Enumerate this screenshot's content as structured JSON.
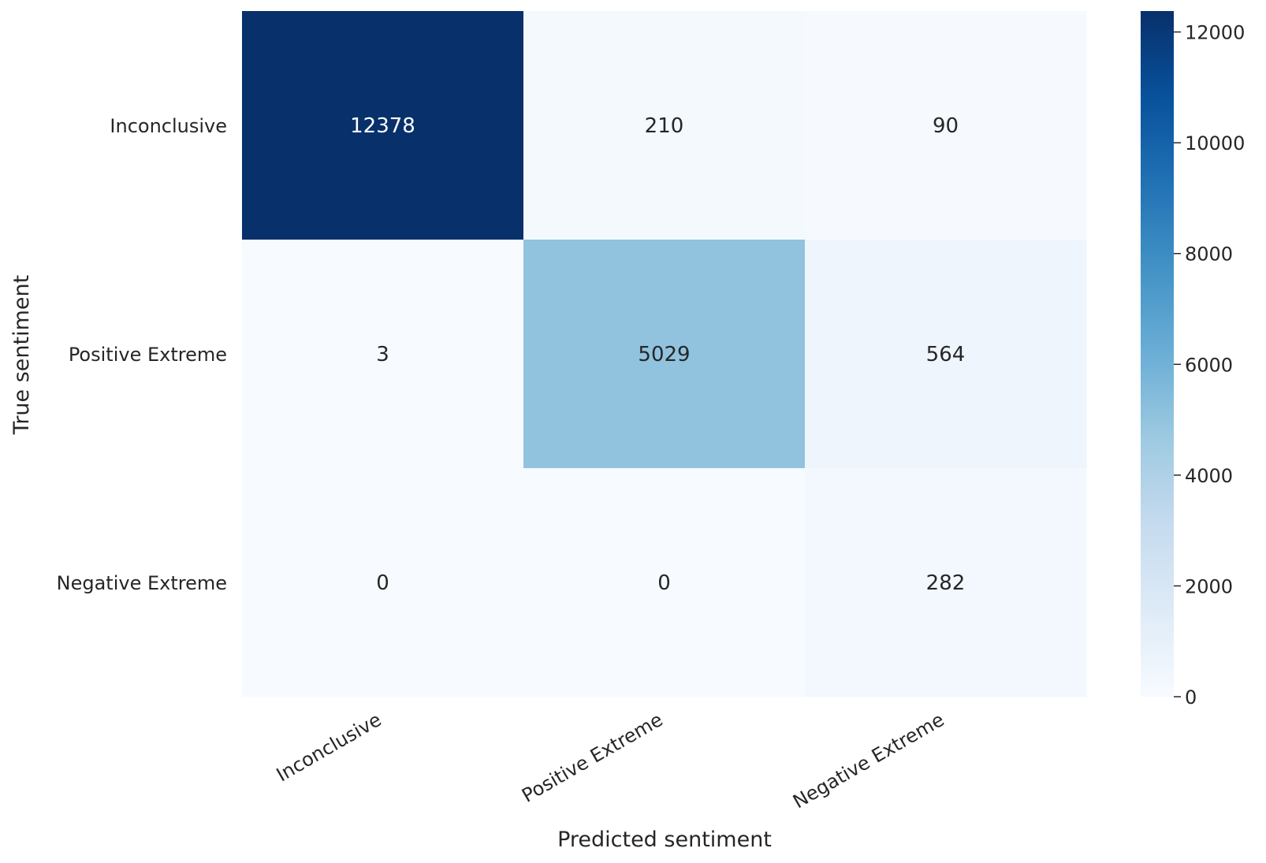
{
  "chart_data": {
    "type": "heatmap",
    "title": "",
    "xlabel": "Predicted sentiment",
    "ylabel": "True sentiment",
    "x_categories": [
      "Inconclusive",
      "Positive Extreme",
      "Negative Extreme"
    ],
    "y_categories": [
      "Inconclusive",
      "Positive Extreme",
      "Negative Extreme"
    ],
    "values": [
      [
        12378,
        210,
        90
      ],
      [
        3,
        5029,
        564
      ],
      [
        0,
        0,
        282
      ]
    ],
    "colormap": "Blues",
    "colorbar": {
      "range": [
        0,
        12378
      ],
      "ticks": [
        0,
        2000,
        4000,
        6000,
        8000,
        10000,
        12000
      ]
    },
    "grid": false
  }
}
